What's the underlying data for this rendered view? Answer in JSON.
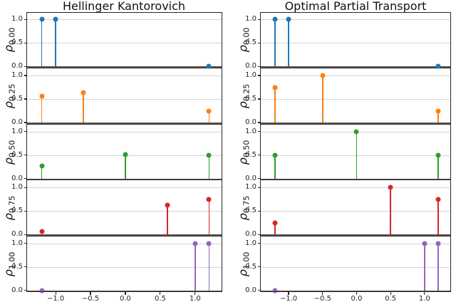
{
  "chart_data": {
    "type": "scatter",
    "style": "stem",
    "layout": "2 columns x 5 rows of stacked subplots",
    "xlim": [
      -1.42,
      1.39
    ],
    "ylim": [
      0.0,
      1.16
    ],
    "xticks": [
      -1.0,
      -0.5,
      0.0,
      0.5,
      1.0
    ],
    "xtick_labels": [
      "−1.0",
      "−0.5",
      "0.0",
      "0.5",
      "1.0"
    ],
    "yticks": [
      1.0,
      0.5,
      0.0
    ],
    "ytick_labels": [
      "1.0",
      "0.5",
      "0.0"
    ],
    "grid": true,
    "ylabel_symbol": "ρ",
    "row_params": [
      "0.00",
      "0.25",
      "0.50",
      "0.75",
      "1.00"
    ],
    "row_colors": [
      "#1f77b4",
      "#ff7f0e",
      "#2ca02c",
      "#d62728",
      "#9467bd"
    ],
    "baseline_color": "#5a534d",
    "columns": [
      {
        "title": "Hellinger Kantorovich",
        "rows": [
          {
            "rho": "0.00",
            "points": [
              [
                -1.2,
                1.0
              ],
              [
                -1.0,
                1.0
              ],
              [
                1.2,
                0.0
              ]
            ]
          },
          {
            "rho": "0.25",
            "points": [
              [
                -1.2,
                0.56
              ],
              [
                -0.6,
                0.63
              ],
              [
                1.2,
                0.25
              ]
            ]
          },
          {
            "rho": "0.50",
            "points": [
              [
                -1.2,
                0.26
              ],
              [
                0.0,
                0.51
              ],
              [
                1.2,
                0.5
              ]
            ]
          },
          {
            "rho": "0.75",
            "points": [
              [
                -1.2,
                0.06
              ],
              [
                0.6,
                0.63
              ],
              [
                1.2,
                0.75
              ]
            ]
          },
          {
            "rho": "1.00",
            "points": [
              [
                -1.2,
                0.0
              ],
              [
                1.0,
                1.0
              ],
              [
                1.2,
                1.0
              ]
            ]
          }
        ]
      },
      {
        "title": "Optimal Partial Transport",
        "rows": [
          {
            "rho": "0.00",
            "points": [
              [
                -1.2,
                1.0
              ],
              [
                -1.0,
                1.0
              ],
              [
                1.2,
                0.0
              ]
            ]
          },
          {
            "rho": "0.25",
            "points": [
              [
                -1.2,
                0.75
              ],
              [
                -0.5,
                1.0
              ],
              [
                1.2,
                0.25
              ]
            ]
          },
          {
            "rho": "0.50",
            "points": [
              [
                -1.2,
                0.5
              ],
              [
                0.0,
                1.0
              ],
              [
                1.2,
                0.5
              ]
            ]
          },
          {
            "rho": "0.75",
            "points": [
              [
                -1.2,
                0.25
              ],
              [
                0.5,
                1.0
              ],
              [
                1.2,
                0.75
              ]
            ]
          },
          {
            "rho": "1.00",
            "points": [
              [
                -1.2,
                0.0
              ],
              [
                1.0,
                1.0
              ],
              [
                1.2,
                1.0
              ]
            ]
          }
        ]
      }
    ]
  }
}
